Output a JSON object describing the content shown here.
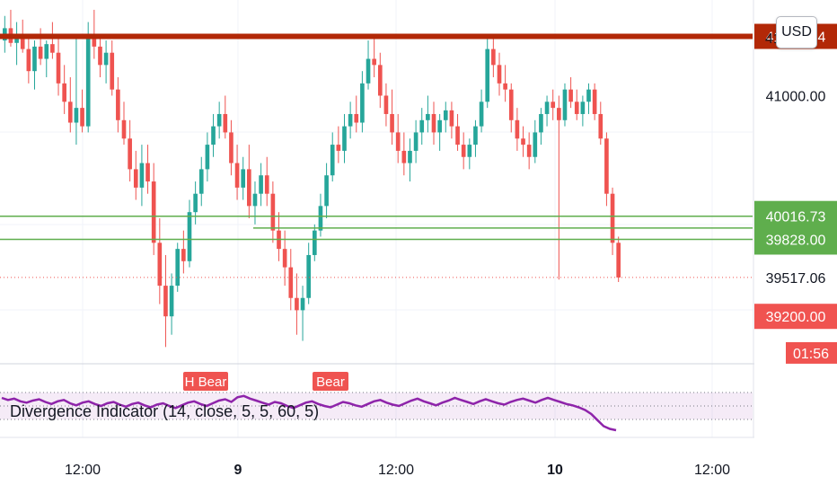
{
  "currency_button": "USD",
  "chart_data": {
    "type": "candlestick",
    "price_axis": {
      "tick_labels": [
        "41000.00"
      ],
      "clipped_top_label": "41",
      "ylim": [
        38850,
        41780
      ]
    },
    "time_axis": {
      "tick_labels": [
        "12:00",
        "9",
        "12:00",
        "10",
        "12:00"
      ],
      "bold_labels": [
        "9",
        "10"
      ]
    },
    "price_levels": [
      {
        "value": 41483.34,
        "label": "41483.34",
        "color": "#b22807",
        "role": "resistance"
      },
      {
        "value": 40016.73,
        "label": "40016.73",
        "color": "#5fae4d",
        "role": "support"
      },
      {
        "value": 39920.0,
        "label": "",
        "color": "#5fae4d",
        "role": "support"
      },
      {
        "value": 39828.0,
        "label": "39828.00",
        "color": "#5fae4d",
        "role": "support"
      },
      {
        "value": 39517.06,
        "label": "39517.06",
        "color": "#f05350",
        "role": "last-price",
        "countdown": "01:56"
      },
      {
        "value": 39200.0,
        "label": "39200.00",
        "color": "#f05350",
        "role": "crosshair"
      }
    ],
    "candle_series": [
      [
        41450,
        41650,
        41350,
        41550
      ],
      [
        41550,
        41700,
        41400,
        41430
      ],
      [
        41430,
        41600,
        41250,
        41500
      ],
      [
        41500,
        41620,
        41350,
        41380
      ],
      [
        41380,
        41500,
        41100,
        41200
      ],
      [
        41200,
        41450,
        41050,
        41400
      ],
      [
        41400,
        41550,
        41250,
        41300
      ],
      [
        41300,
        41450,
        41150,
        41420
      ],
      [
        41420,
        41600,
        41300,
        41350
      ],
      [
        41350,
        41480,
        41000,
        41100
      ],
      [
        41100,
        41250,
        40850,
        40950
      ],
      [
        40950,
        41150,
        40700,
        40780
      ],
      [
        40780,
        41500,
        40600,
        40900
      ],
      [
        40900,
        41050,
        40700,
        40750
      ],
      [
        40750,
        41600,
        40700,
        41480
      ],
      [
        41480,
        41700,
        41300,
        41400
      ],
      [
        41400,
        41500,
        41150,
        41250
      ],
      [
        41250,
        41450,
        41100,
        41350
      ],
      [
        41350,
        41450,
        41000,
        41050
      ],
      [
        41050,
        41150,
        40700,
        40800
      ],
      [
        40800,
        40950,
        40600,
        40650
      ],
      [
        40650,
        40800,
        40300,
        40400
      ],
      [
        40400,
        40550,
        40150,
        40250
      ],
      [
        40250,
        40600,
        40100,
        40450
      ],
      [
        40450,
        40600,
        40200,
        40300
      ],
      [
        40300,
        40450,
        39700,
        39800
      ],
      [
        39800,
        40000,
        39300,
        39450
      ],
      [
        39450,
        39700,
        38950,
        39200
      ],
      [
        39200,
        39550,
        39050,
        39450
      ],
      [
        39450,
        39800,
        39400,
        39750
      ],
      [
        39750,
        39900,
        39550,
        39650
      ],
      [
        39650,
        40150,
        39600,
        40050
      ],
      [
        40050,
        40300,
        39950,
        40200
      ],
      [
        40200,
        40500,
        40100,
        40400
      ],
      [
        40400,
        40700,
        40300,
        40600
      ],
      [
        40600,
        40850,
        40500,
        40750
      ],
      [
        40750,
        40950,
        40650,
        40850
      ],
      [
        40850,
        41000,
        40650,
        40700
      ],
      [
        40700,
        40800,
        40350,
        40450
      ],
      [
        40450,
        40600,
        40150,
        40250
      ],
      [
        40250,
        40500,
        40150,
        40400
      ],
      [
        40400,
        40600,
        40000,
        40100
      ],
      [
        40100,
        40300,
        39950,
        40200
      ],
      [
        40200,
        40450,
        40100,
        40350
      ],
      [
        40350,
        40500,
        40100,
        40200
      ],
      [
        40200,
        40300,
        39800,
        39900
      ],
      [
        39900,
        40050,
        39650,
        39750
      ],
      [
        39750,
        39900,
        39450,
        39600
      ],
      [
        39600,
        39750,
        39250,
        39350
      ],
      [
        39350,
        39550,
        39050,
        39250
      ],
      [
        39250,
        39450,
        39000,
        39350
      ],
      [
        39350,
        39800,
        39300,
        39700
      ],
      [
        39700,
        39950,
        39650,
        39900
      ],
      [
        39900,
        40200,
        39850,
        40100
      ],
      [
        40100,
        40450,
        40000,
        40350
      ],
      [
        40350,
        40700,
        40300,
        40600
      ],
      [
        40600,
        40750,
        40450,
        40550
      ],
      [
        40550,
        40850,
        40450,
        40750
      ],
      [
        40750,
        40950,
        40650,
        40850
      ],
      [
        40850,
        41000,
        40700,
        40780
      ],
      [
        40780,
        41200,
        40700,
        41100
      ],
      [
        41100,
        41450,
        41050,
        41300
      ],
      [
        41300,
        41480,
        41150,
        41250
      ],
      [
        41250,
        41350,
        40900,
        41000
      ],
      [
        41000,
        41100,
        40750,
        40850
      ],
      [
        40850,
        41050,
        40600,
        40700
      ],
      [
        40700,
        40850,
        40450,
        40550
      ],
      [
        40550,
        40700,
        40350,
        40450
      ],
      [
        40450,
        40650,
        40300,
        40550
      ],
      [
        40550,
        40800,
        40450,
        40700
      ],
      [
        40700,
        40900,
        40600,
        40800
      ],
      [
        40800,
        41000,
        40700,
        40850
      ],
      [
        40850,
        40950,
        40600,
        40700
      ],
      [
        40700,
        40850,
        40550,
        40800
      ],
      [
        40800,
        40950,
        40700,
        40880
      ],
      [
        40880,
        40950,
        40650,
        40750
      ],
      [
        40750,
        40850,
        40550,
        40600
      ],
      [
        40600,
        40700,
        40400,
        40500
      ],
      [
        40500,
        40650,
        40400,
        40600
      ],
      [
        40600,
        40800,
        40500,
        40750
      ],
      [
        40750,
        41050,
        40700,
        40950
      ],
      [
        40950,
        41480,
        40900,
        41380
      ],
      [
        41380,
        41500,
        41150,
        41250
      ],
      [
        41250,
        41350,
        41000,
        41100
      ],
      [
        41100,
        41250,
        40950,
        41050
      ],
      [
        41050,
        41100,
        40700,
        40800
      ],
      [
        40800,
        40900,
        40550,
        40650
      ],
      [
        40650,
        40750,
        40500,
        40600
      ],
      [
        40600,
        40700,
        40400,
        40500
      ],
      [
        40500,
        40800,
        40450,
        40700
      ],
      [
        40700,
        40900,
        40600,
        40850
      ],
      [
        40850,
        41000,
        40750,
        40950
      ],
      [
        40950,
        41050,
        40800,
        40900
      ],
      [
        40900,
        41000,
        39500,
        40800
      ],
      [
        40800,
        41100,
        40750,
        41050
      ],
      [
        41050,
        41150,
        40900,
        40950
      ],
      [
        40950,
        41050,
        40800,
        40850
      ],
      [
        40850,
        41000,
        40750,
        40950
      ],
      [
        40950,
        41100,
        40850,
        41050
      ],
      [
        41050,
        41100,
        40800,
        40850
      ],
      [
        40850,
        40950,
        40600,
        40650
      ],
      [
        40650,
        40700,
        40100,
        40200
      ],
      [
        40200,
        40250,
        39700,
        39800
      ],
      [
        39800,
        39850,
        39480,
        39517
      ]
    ],
    "indicator": {
      "name": "Divergence Indicator (14, close, 5, 5, 60, 5)",
      "color": "#8e24aa",
      "bands": [
        70,
        30
      ],
      "midline": 50,
      "ylim": [
        10,
        90
      ],
      "signals": [
        "H Bear",
        "Bear"
      ],
      "values": [
        62,
        59,
        61,
        57,
        55,
        58,
        60,
        56,
        53,
        57,
        59,
        54,
        51,
        55,
        57,
        53,
        50,
        54,
        56,
        52,
        49,
        53,
        55,
        51,
        48,
        52,
        54,
        50,
        47,
        51,
        55,
        57,
        53,
        50,
        54,
        58,
        60,
        56,
        63,
        65,
        61,
        58,
        55,
        52,
        56,
        54,
        50,
        47,
        51,
        55,
        57,
        53,
        50,
        48,
        52,
        56,
        54,
        51,
        49,
        53,
        57,
        59,
        55,
        52,
        50,
        54,
        58,
        61,
        57,
        54,
        51,
        55,
        58,
        62,
        59,
        56,
        53,
        57,
        60,
        57,
        54,
        52,
        56,
        59,
        61,
        58,
        55,
        59,
        62,
        59,
        56,
        53,
        51,
        48,
        44,
        38,
        29,
        20,
        16,
        14
      ]
    }
  }
}
